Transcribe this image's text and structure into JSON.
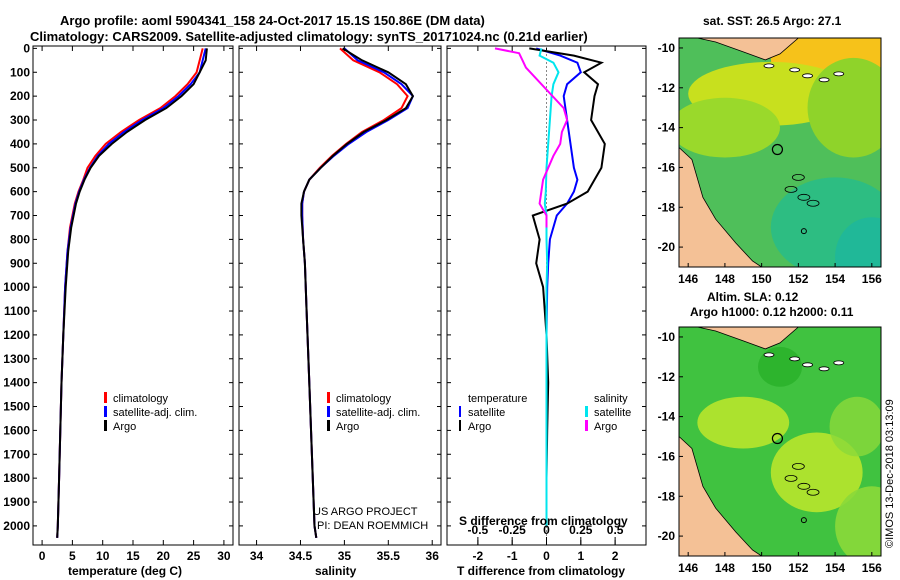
{
  "title": {
    "line1": "Argo profile: aoml 5904341_158 24-Oct-2017 15.1S 150.86E (DM data)",
    "line2": "Climatology: CARS2009. Satellite-adjusted climatology: synTS_20171024.nc (0.21d earlier)"
  },
  "colors": {
    "climatology": "#ff0000",
    "satellite": "#0000ff",
    "argo": "#000000",
    "sal_satellite": "#00e5ee",
    "sal_argo": "#ff00ff"
  },
  "chart_data": [
    {
      "type": "line",
      "name": "temperature",
      "xlabel": "temperature (deg C)",
      "xlim": [
        -1.5,
        31.5
      ],
      "ylim": [
        2080,
        -10
      ],
      "xticks": [
        "0",
        "5",
        "10",
        "15",
        "20",
        "25",
        "30"
      ],
      "xtick_values": [
        0,
        5,
        10,
        15,
        20,
        25,
        30
      ],
      "yticks": [
        "0",
        "100",
        "200",
        "300",
        "400",
        "500",
        "600",
        "700",
        "800",
        "900",
        "1000",
        "1100",
        "1200",
        "1300",
        "1400",
        "1500",
        "1600",
        "1700",
        "1800",
        "1900",
        "2000"
      ],
      "series": [
        {
          "name": "climatology",
          "color": "#ff0000",
          "x": [
            26.5,
            26,
            25.5,
            24,
            22,
            19.5,
            16,
            13,
            10.5,
            8.8,
            7.5,
            6.8,
            6,
            5.4,
            4.6,
            4.2,
            3.8,
            3.5,
            3.2,
            3.0,
            2.8,
            2.6,
            2.5
          ],
          "y": [
            0,
            50,
            100,
            150,
            200,
            250,
            300,
            350,
            400,
            450,
            500,
            550,
            600,
            650,
            750,
            850,
            1000,
            1200,
            1400,
            1600,
            1800,
            2000,
            2050
          ]
        },
        {
          "name": "satellite-adj. clim.",
          "color": "#0000ff",
          "x": [
            27,
            26.5,
            26,
            24.5,
            22.5,
            20,
            16.5,
            13.5,
            11,
            9.2,
            7.9,
            6.9,
            6.1,
            5.5,
            4.7,
            4.2,
            3.8,
            3.5,
            3.2,
            3.0,
            2.8,
            2.6,
            2.5
          ],
          "y": [
            0,
            50,
            100,
            150,
            200,
            250,
            300,
            350,
            400,
            450,
            500,
            550,
            600,
            650,
            750,
            850,
            1000,
            1200,
            1400,
            1600,
            1800,
            2000,
            2050
          ]
        },
        {
          "name": "Argo",
          "color": "#000000",
          "x": [
            27.2,
            27,
            26,
            25,
            23,
            20.5,
            17,
            14,
            11.5,
            9.4,
            8,
            7,
            6.2,
            5.6,
            4.8,
            4.3,
            3.9,
            3.5,
            3.2,
            3.0,
            2.8,
            2.6,
            2.5
          ],
          "y": [
            0,
            50,
            100,
            150,
            200,
            250,
            300,
            350,
            400,
            450,
            500,
            550,
            600,
            650,
            750,
            850,
            1000,
            1200,
            1400,
            1600,
            1800,
            2000,
            2050
          ]
        }
      ],
      "legend": [
        "climatology",
        "satellite-adj. clim.",
        "Argo"
      ]
    },
    {
      "type": "line",
      "name": "salinity",
      "xlabel": "salinity",
      "xlim": [
        33.8,
        36.1
      ],
      "ylim": [
        2080,
        -10
      ],
      "xticks": [
        "34",
        "34.5",
        "35",
        "35.5",
        "36"
      ],
      "xtick_values": [
        34,
        34.5,
        35,
        35.5,
        36
      ],
      "series": [
        {
          "name": "climatology",
          "color": "#ff0000",
          "x": [
            34.95,
            35.1,
            35.4,
            35.6,
            35.72,
            35.65,
            35.45,
            35.2,
            35.02,
            34.86,
            34.72,
            34.6,
            34.54,
            34.52,
            34.52,
            34.53,
            34.55,
            34.57,
            34.6,
            34.63,
            34.66,
            34.68
          ],
          "y": [
            0,
            50,
            100,
            150,
            200,
            250,
            300,
            350,
            400,
            450,
            500,
            550,
            600,
            650,
            700,
            800,
            900,
            1100,
            1400,
            1700,
            2000,
            2050
          ]
        },
        {
          "name": "satellite-adj. clim.",
          "color": "#0000ff",
          "x": [
            35.0,
            35.15,
            35.45,
            35.65,
            35.78,
            35.72,
            35.5,
            35.25,
            35.05,
            34.88,
            34.73,
            34.6,
            34.54,
            34.52,
            34.52,
            34.53,
            34.55,
            34.57,
            34.6,
            34.63,
            34.66,
            34.68
          ],
          "y": [
            0,
            50,
            100,
            150,
            200,
            250,
            300,
            350,
            400,
            450,
            500,
            550,
            600,
            650,
            700,
            800,
            900,
            1100,
            1400,
            1700,
            2000,
            2050
          ]
        },
        {
          "name": "Argo",
          "color": "#000000",
          "x": [
            34.98,
            35.2,
            35.5,
            35.7,
            35.78,
            35.7,
            35.48,
            35.22,
            35.03,
            34.87,
            34.73,
            34.6,
            34.54,
            34.51,
            34.51,
            34.53,
            34.55,
            34.57,
            34.6,
            34.63,
            34.66,
            34.68
          ],
          "y": [
            0,
            50,
            100,
            150,
            200,
            250,
            300,
            350,
            400,
            450,
            500,
            550,
            600,
            650,
            700,
            800,
            900,
            1100,
            1400,
            1700,
            2000,
            2050
          ]
        }
      ],
      "legend": [
        "climatology",
        "satellite-adj. clim.",
        "Argo"
      ],
      "annotation": [
        "US ARGO PROJECT",
        "PI: DEAN ROEMMICH"
      ]
    },
    {
      "type": "line",
      "name": "difference",
      "xlabel": "T difference from climatology",
      "xlim": [
        -2.9,
        2.9
      ],
      "ylim": [
        2080,
        -10
      ],
      "xticks": [
        "-2",
        "-1",
        "0",
        "1",
        "2"
      ],
      "xtick_values": [
        -2,
        -1,
        0,
        1,
        2
      ],
      "secondary_xlabel": "S difference from climatology",
      "secondary_xticks": [
        "-0.5",
        "-0.25",
        "0",
        "0.25",
        "0.5"
      ],
      "secondary_xtick_values": [
        -0.5,
        -0.25,
        0,
        0.25,
        0.5
      ],
      "series": [
        {
          "name": "T satellite",
          "color": "#0000ff",
          "x": [
            -0.3,
            0.4,
            0.9,
            1.0,
            0.6,
            0.5,
            0.6,
            0.7,
            0.8,
            0.9,
            0.8,
            0.6,
            0.3,
            0.1,
            0.05,
            0.02,
            0.0,
            0.0,
            0.0,
            0.0,
            0.0
          ],
          "y": [
            0,
            30,
            60,
            100,
            150,
            200,
            300,
            400,
            500,
            550,
            600,
            650,
            700,
            800,
            900,
            1000,
            1200,
            1400,
            1600,
            1800,
            2000
          ]
        },
        {
          "name": "T Argo",
          "color": "#000000",
          "x": [
            -0.5,
            0.8,
            1.6,
            1.1,
            1.5,
            1.4,
            1.3,
            1.7,
            1.6,
            1.4,
            1.2,
            0.6,
            -0.4,
            -0.2,
            -0.3,
            -0.1,
            0.0,
            0.05,
            0.02,
            0.0,
            0.0
          ],
          "y": [
            0,
            30,
            60,
            100,
            150,
            200,
            300,
            400,
            500,
            550,
            600,
            650,
            700,
            800,
            900,
            1000,
            1200,
            1400,
            1600,
            1800,
            2000
          ]
        },
        {
          "name": "S satellite",
          "color": "#00e5ee",
          "x": [
            -0.15,
            -0.2,
            0.2,
            0.35,
            0.2,
            0.15,
            0.1,
            0.05,
            0.0,
            -0.02,
            -0.05,
            0.0,
            0.0,
            0.02,
            0.0,
            0.0,
            0.0,
            0.0,
            0.0
          ],
          "y": [
            0,
            30,
            60,
            100,
            150,
            200,
            300,
            400,
            500,
            600,
            650,
            700,
            800,
            900,
            1000,
            1200,
            1400,
            1600,
            2000
          ]
        },
        {
          "name": "S Argo",
          "color": "#ff00ff",
          "x": [
            -1.5,
            -0.8,
            -0.7,
            -0.6,
            0.5,
            0.6,
            0.45,
            0.4,
            0.2,
            -0.1,
            -0.2,
            0.0,
            0.0
          ],
          "y": [
            0,
            20,
            50,
            80,
            250,
            300,
            350,
            400,
            450,
            550,
            650,
            700,
            750
          ]
        }
      ],
      "legend_temperature": {
        "heading": "temperature",
        "items": [
          "satellite",
          "Argo"
        ]
      },
      "legend_salinity": {
        "heading": "salinity",
        "items": [
          "satellite",
          "Argo"
        ]
      }
    }
  ],
  "maps": [
    {
      "title": "sat. SST: 26.5 Argo: 27.1",
      "xticks": [
        "146",
        "148",
        "150",
        "152",
        "154",
        "156"
      ],
      "xtick_values": [
        146,
        148,
        150,
        152,
        154,
        156
      ],
      "yticks": [
        "-10",
        "-12",
        "-14",
        "-16",
        "-18",
        "-20"
      ],
      "ytick_values": [
        -10,
        -12,
        -14,
        -16,
        -18,
        -20
      ],
      "lon_range": [
        145.5,
        156.5
      ],
      "lat_range": [
        -21.0,
        -9.5
      ],
      "float_position": [
        150.86,
        -15.1
      ]
    },
    {
      "title_line1": "Altim. SLA: 0.12",
      "title_line2": "Argo h1000: 0.12 h2000: 0.11",
      "xticks": [
        "146",
        "148",
        "150",
        "152",
        "154",
        "156"
      ],
      "xtick_values": [
        146,
        148,
        150,
        152,
        154,
        156
      ],
      "yticks": [
        "-10",
        "-12",
        "-14",
        "-16",
        "-18",
        "-20"
      ],
      "ytick_values": [
        -10,
        -12,
        -14,
        -16,
        -18,
        -20
      ],
      "lon_range": [
        145.5,
        156.5
      ],
      "lat_range": [
        -21.0,
        -9.5
      ],
      "float_position": [
        150.86,
        -15.1
      ],
      "side_label": "©IMOS 13-Dec-2018 03:13:09"
    }
  ]
}
